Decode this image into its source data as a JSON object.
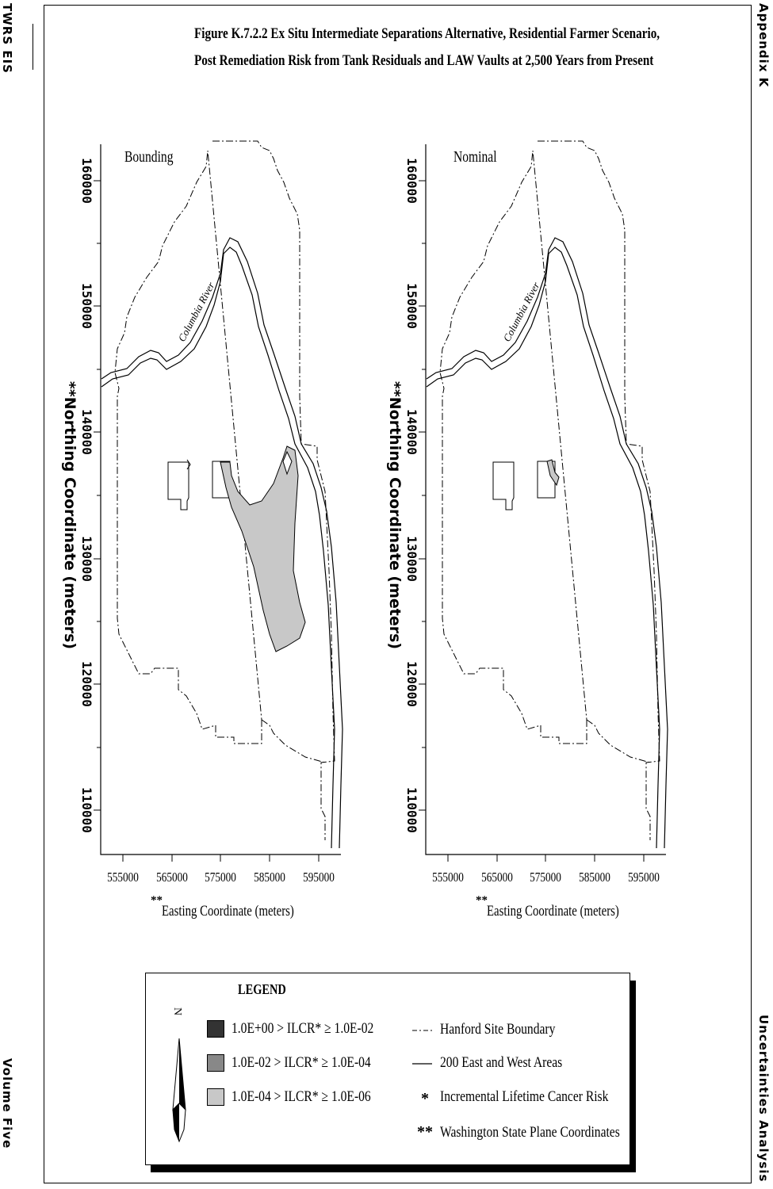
{
  "header": {
    "left_label": "TWRS EIS",
    "right_label": "Appendix K",
    "left_footer": "Volume Five",
    "right_footer": "Uncertainties Analysis"
  },
  "figure": {
    "title_line1": "Figure K.7.2.2  Ex Situ Intermediate Separations Alternative, Residential Farmer Scenario,",
    "title_line2": "Post Remediation Risk from Tank Residuals and LAW Vaults at 2,500 Years from Present"
  },
  "maps": [
    {
      "label": "Bounding",
      "risk_zone_color": "#c8c8c8"
    },
    {
      "label": "Nominal",
      "risk_zone_color": "#c8c8c8"
    }
  ],
  "axes": {
    "y_title": "**Northing Coordinate (meters)",
    "x_title": "Easting Coordinate (meters)",
    "x_title_prefix": "**",
    "y_ticks": [
      "160000",
      "150000",
      "140000",
      "130000",
      "120000",
      "110000"
    ],
    "x_ticks": [
      "555000",
      "565000",
      "575000",
      "585000",
      "595000"
    ]
  },
  "river_label": "Columbia River",
  "legend": {
    "title": "LEGEND",
    "north": "N",
    "risk_items": [
      {
        "label": "1.0E+00 > ILCR* ≥ 1.0E-02",
        "color": "#333333"
      },
      {
        "label": "1.0E-02 > ILCR* ≥ 1.0E-04",
        "color": "#888888"
      },
      {
        "label": "1.0E-04 > ILCR* ≥ 1.0E-06",
        "color": "#c8c8c8"
      }
    ],
    "line_items": [
      {
        "symbol": "---",
        "label": "Hanford Site Boundary"
      },
      {
        "symbol": "—",
        "label": "200 East and West Areas"
      },
      {
        "symbol": "*",
        "label": "Incremental Lifetime Cancer Risk"
      },
      {
        "symbol": "**",
        "label": "Washington State Plane Coordinates"
      }
    ]
  }
}
